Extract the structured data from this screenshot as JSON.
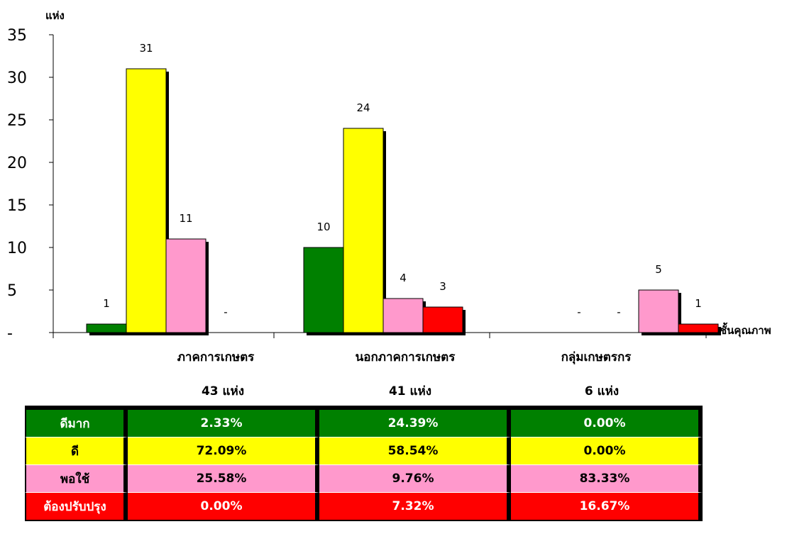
{
  "chart_data": {
    "type": "bar",
    "ylabel": "แห่ง",
    "xlabel": "ชั้นคุณภาพ",
    "ylim": [
      0,
      35
    ],
    "yticks": [
      0,
      5,
      10,
      15,
      20,
      25,
      30,
      35
    ],
    "ytick_labels": [
      "-",
      "5",
      "10",
      "15",
      "20",
      "25",
      "30",
      "35"
    ],
    "categories": [
      "ภาคการเกษตร",
      "นอกภาคการเกษตร",
      "กลุ่มเกษตรกร"
    ],
    "category_counts": [
      "43  แห่ง",
      "41  แห่ง",
      "6  แห่ง"
    ],
    "series": [
      {
        "key": "very-good",
        "color": "#008000",
        "values": [
          1,
          10,
          0
        ],
        "labels": [
          "1",
          "10",
          "-"
        ]
      },
      {
        "key": "good",
        "color": "#ffff00",
        "values": [
          31,
          24,
          0
        ],
        "labels": [
          "31",
          "24",
          "-"
        ]
      },
      {
        "key": "fair",
        "color": "#ff99cc",
        "values": [
          11,
          4,
          5
        ],
        "labels": [
          "11",
          "4",
          "5"
        ]
      },
      {
        "key": "needs-improvement",
        "color": "#ff0000",
        "values": [
          0,
          3,
          1
        ],
        "labels": [
          "-",
          "3",
          "1"
        ]
      }
    ],
    "grid": false,
    "legend": "table-below"
  },
  "table": {
    "rows": [
      {
        "label": "ดีมาก",
        "values": [
          "2.33%",
          "24.39%",
          "0.00%"
        ]
      },
      {
        "label": "ดี",
        "values": [
          "72.09%",
          "58.54%",
          "0.00%"
        ]
      },
      {
        "label": "พอใช้",
        "values": [
          "25.58%",
          "9.76%",
          "83.33%"
        ]
      },
      {
        "label": "ต้องปรับปรุง",
        "values": [
          "0.00%",
          "7.32%",
          "16.67%"
        ]
      }
    ]
  }
}
